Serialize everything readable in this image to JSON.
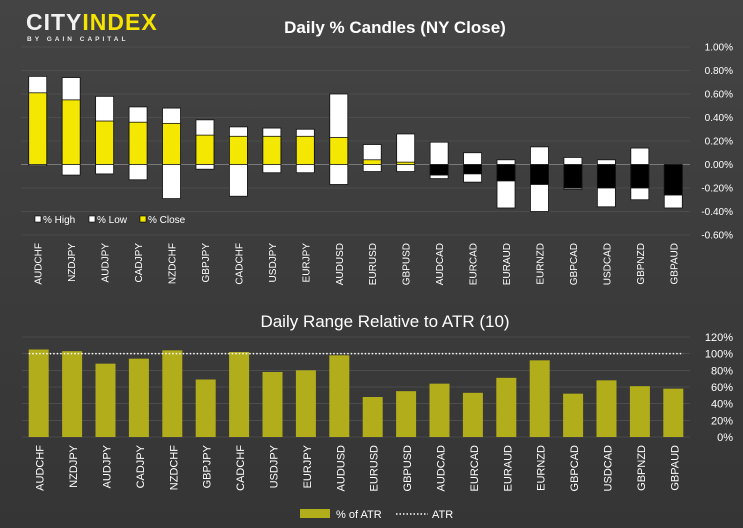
{
  "logo": {
    "brand_part1": "CITY",
    "brand_part2": "INDEX",
    "tagline": "BY GAIN CAPITAL"
  },
  "colors": {
    "background": "#3b3b3b",
    "close_fill": "#f5e800",
    "high_fill": "#ffffff",
    "low_fill": "#ffffff",
    "negative_close_fill": "#000000",
    "atr_bar": "#b2ad1a",
    "grid": "#5a5a5a",
    "text": "#ffffff"
  },
  "chart_data": [
    {
      "type": "bar",
      "title": "Daily % Candles (NY Close)",
      "categories": [
        "AUDCHF",
        "NZDJPY",
        "AUDJPY",
        "CADJPY",
        "NZDCHF",
        "GBPJPY",
        "CADCHF",
        "USDJPY",
        "EURJPY",
        "AUDUSD",
        "EURUSD",
        "GBPUSD",
        "AUDCAD",
        "EURCAD",
        "EURAUD",
        "EURNZD",
        "GBPCAD",
        "USDCAD",
        "GBPNZD",
        "GBPAUD"
      ],
      "series": [
        {
          "name": "% High",
          "values": [
            0.75,
            0.74,
            0.58,
            0.49,
            0.48,
            0.38,
            0.32,
            0.31,
            0.3,
            0.6,
            0.17,
            0.26,
            0.19,
            0.1,
            0.04,
            0.15,
            0.06,
            0.04,
            0.14,
            -0.01
          ]
        },
        {
          "name": "% Low",
          "values": [
            -0.01,
            -0.09,
            -0.08,
            -0.13,
            -0.29,
            -0.04,
            -0.27,
            -0.07,
            -0.07,
            -0.17,
            -0.06,
            -0.06,
            -0.12,
            -0.15,
            -0.37,
            -0.4,
            -0.21,
            -0.36,
            -0.3,
            -0.37
          ]
        },
        {
          "name": "% Close",
          "values": [
            0.61,
            0.55,
            0.37,
            0.36,
            0.35,
            0.25,
            0.24,
            0.24,
            0.24,
            0.23,
            0.04,
            0.02,
            -0.09,
            -0.08,
            -0.14,
            -0.17,
            -0.2,
            -0.2,
            -0.2,
            -0.26
          ]
        }
      ],
      "ylim": [
        -0.6,
        1.0
      ],
      "yticks": [
        "1.00%",
        "0.80%",
        "0.60%",
        "0.40%",
        "0.20%",
        "0.00%",
        "-0.20%",
        "-0.40%",
        "-0.60%"
      ],
      "legend_position": "bottom-left",
      "grid": true
    },
    {
      "type": "bar",
      "title": "Daily Range Relative to ATR (10)",
      "categories": [
        "AUDCHF",
        "NZDJPY",
        "AUDJPY",
        "CADJPY",
        "NZDCHF",
        "GBPJPY",
        "CADCHF",
        "USDJPY",
        "EURJPY",
        "AUDUSD",
        "EURUSD",
        "GBPUSD",
        "AUDCAD",
        "EURCAD",
        "EURAUD",
        "EURNZD",
        "GBPCAD",
        "USDCAD",
        "GBPNZD",
        "GBPAUD"
      ],
      "series": [
        {
          "name": "% of ATR",
          "values": [
            105,
            103,
            88,
            94,
            104,
            69,
            102,
            78,
            80,
            98,
            48,
            55,
            64,
            53,
            71,
            92,
            52,
            68,
            61,
            58
          ]
        },
        {
          "name": "ATR",
          "values": [
            100,
            100,
            100,
            100,
            100,
            100,
            100,
            100,
            100,
            100,
            100,
            100,
            100,
            100,
            100,
            100,
            100,
            100,
            100,
            100
          ]
        }
      ],
      "ylim": [
        0,
        120
      ],
      "yticks": [
        "120%",
        "100%",
        "80%",
        "60%",
        "40%",
        "20%",
        "0%"
      ],
      "legend_position": "bottom-center",
      "grid": true
    }
  ]
}
